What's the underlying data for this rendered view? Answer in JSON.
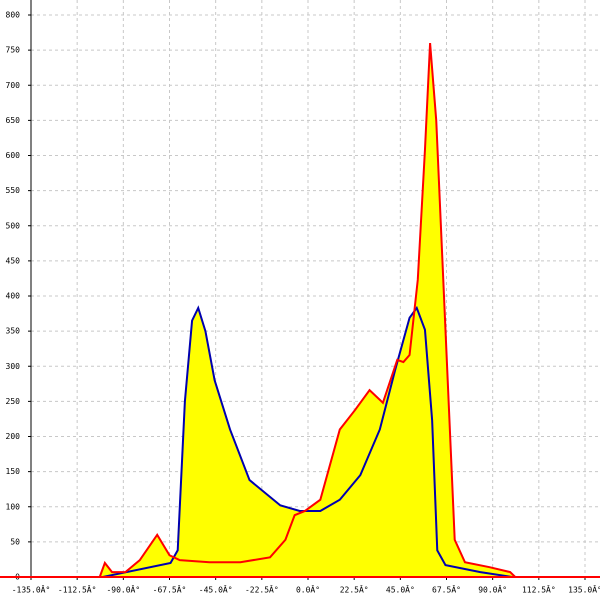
{
  "chart_data": {
    "type": "area",
    "fill": "#ffff00",
    "xlim": [
      -135,
      135
    ],
    "xticks": [
      {
        "value": -135,
        "label": "-135.0Â°"
      },
      {
        "value": -112.5,
        "label": "-112.5Â°"
      },
      {
        "value": -90,
        "label": "-90.0Â°"
      },
      {
        "value": -67.5,
        "label": "-67.5Â°"
      },
      {
        "value": -45,
        "label": "-45.0Â°"
      },
      {
        "value": -22.5,
        "label": "-22.5Â°"
      },
      {
        "value": 0,
        "label": "0.0Â°"
      },
      {
        "value": 22.5,
        "label": "22.5Â°"
      },
      {
        "value": 45,
        "label": "45.0Â°"
      },
      {
        "value": 67.5,
        "label": "67.5Â°"
      },
      {
        "value": 90,
        "label": "90.0Â°"
      },
      {
        "value": 112.5,
        "label": "112.5Â°"
      },
      {
        "value": 135,
        "label": "135.0Â°"
      }
    ],
    "ylim": [
      0,
      800
    ],
    "yticks": [
      0,
      50,
      100,
      150,
      200,
      250,
      300,
      350,
      400,
      450,
      500,
      550,
      600,
      650,
      700,
      750,
      800
    ],
    "grid": true,
    "series": [
      {
        "color": "#0000b0",
        "x": [
          -100,
          -67,
          -63.5,
          -60,
          -56.5,
          -53.5,
          -50,
          -45.5,
          -38,
          -28.5,
          -13.5,
          -4,
          6,
          15.5,
          25.5,
          35,
          42.5,
          49.5,
          53,
          57,
          60.5,
          63,
          67,
          84,
          99.5
        ],
        "values": [
          0,
          20,
          38,
          250,
          365,
          383,
          350,
          280,
          210,
          138,
          102,
          94,
          94,
          110,
          145,
          210,
          295,
          369,
          383,
          352,
          223,
          38,
          17,
          7,
          0
        ]
      },
      {
        "color": "#ff0000",
        "x": [
          -101.5,
          -99,
          -95.5,
          -89,
          -82,
          -73.5,
          -67.5,
          -62.5,
          -48,
          -33,
          -18.5,
          -11,
          -6.5,
          -1.5,
          6,
          15.5,
          23,
          30,
          36.5,
          43.5,
          46.5,
          49.5,
          53.5,
          57,
          59.5,
          62.5,
          67,
          71.5,
          76.5,
          88.5,
          98.5,
          101
        ],
        "values": [
          0,
          20,
          7,
          7,
          24,
          60,
          31,
          24,
          21,
          21,
          28,
          53,
          88,
          94,
          110,
          210,
          238,
          266,
          248,
          309,
          306,
          316,
          423,
          608,
          760,
          650,
          352,
          53,
          21,
          14,
          7,
          0
        ]
      }
    ]
  }
}
